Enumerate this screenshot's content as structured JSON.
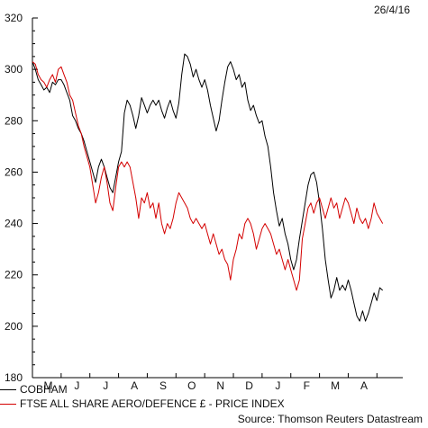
{
  "date_label": "26/4/16",
  "source": "Source: Thomson Reuters Datastream",
  "chart_data": {
    "type": "line",
    "ylim": [
      180,
      320
    ],
    "yticks": [
      180,
      200,
      220,
      240,
      260,
      280,
      300,
      320
    ],
    "month_labels": [
      "M",
      "J",
      "J",
      "A",
      "S",
      "O",
      "N",
      "D",
      "J",
      "F",
      "M",
      "A"
    ],
    "x_range": [
      0,
      12.9
    ],
    "series": [
      {
        "name": "COBHAM",
        "color": "#000000",
        "points": [
          [
            0.0,
            303
          ],
          [
            0.1,
            300
          ],
          [
            0.2,
            296
          ],
          [
            0.3,
            294
          ],
          [
            0.4,
            292
          ],
          [
            0.5,
            293
          ],
          [
            0.6,
            291
          ],
          [
            0.7,
            295
          ],
          [
            0.8,
            294
          ],
          [
            0.9,
            296
          ],
          [
            1.0,
            296
          ],
          [
            1.1,
            294
          ],
          [
            1.2,
            291
          ],
          [
            1.3,
            288
          ],
          [
            1.4,
            282
          ],
          [
            1.5,
            280
          ],
          [
            1.6,
            277
          ],
          [
            1.7,
            275
          ],
          [
            1.8,
            272
          ],
          [
            1.9,
            268
          ],
          [
            2.0,
            264
          ],
          [
            2.1,
            260
          ],
          [
            2.2,
            256
          ],
          [
            2.3,
            262
          ],
          [
            2.4,
            265
          ],
          [
            2.5,
            262
          ],
          [
            2.6,
            258
          ],
          [
            2.7,
            254
          ],
          [
            2.8,
            252
          ],
          [
            2.9,
            258
          ],
          [
            3.0,
            264
          ],
          [
            3.1,
            268
          ],
          [
            3.2,
            283
          ],
          [
            3.3,
            288
          ],
          [
            3.4,
            286
          ],
          [
            3.5,
            282
          ],
          [
            3.6,
            277
          ],
          [
            3.7,
            282
          ],
          [
            3.8,
            289
          ],
          [
            3.9,
            286
          ],
          [
            4.0,
            283
          ],
          [
            4.1,
            286
          ],
          [
            4.2,
            288
          ],
          [
            4.3,
            286
          ],
          [
            4.4,
            288
          ],
          [
            4.5,
            284
          ],
          [
            4.6,
            281
          ],
          [
            4.7,
            285
          ],
          [
            4.8,
            288
          ],
          [
            4.9,
            284
          ],
          [
            5.0,
            281
          ],
          [
            5.1,
            287
          ],
          [
            5.2,
            298
          ],
          [
            5.3,
            306
          ],
          [
            5.4,
            305
          ],
          [
            5.5,
            302
          ],
          [
            5.6,
            297
          ],
          [
            5.7,
            300
          ],
          [
            5.8,
            296
          ],
          [
            5.9,
            293
          ],
          [
            6.0,
            296
          ],
          [
            6.1,
            292
          ],
          [
            6.2,
            286
          ],
          [
            6.3,
            281
          ],
          [
            6.4,
            276
          ],
          [
            6.5,
            280
          ],
          [
            6.6,
            288
          ],
          [
            6.7,
            295
          ],
          [
            6.8,
            301
          ],
          [
            6.9,
            303
          ],
          [
            7.0,
            300
          ],
          [
            7.1,
            296
          ],
          [
            7.2,
            298
          ],
          [
            7.3,
            293
          ],
          [
            7.4,
            295
          ],
          [
            7.5,
            288
          ],
          [
            7.6,
            284
          ],
          [
            7.7,
            286
          ],
          [
            7.8,
            282
          ],
          [
            7.9,
            279
          ],
          [
            8.0,
            280
          ],
          [
            8.1,
            274
          ],
          [
            8.2,
            270
          ],
          [
            8.3,
            262
          ],
          [
            8.4,
            252
          ],
          [
            8.5,
            245
          ],
          [
            8.6,
            239
          ],
          [
            8.7,
            242
          ],
          [
            8.8,
            236
          ],
          [
            8.9,
            232
          ],
          [
            9.0,
            226
          ],
          [
            9.1,
            222
          ],
          [
            9.2,
            226
          ],
          [
            9.3,
            234
          ],
          [
            9.4,
            241
          ],
          [
            9.5,
            248
          ],
          [
            9.6,
            255
          ],
          [
            9.7,
            259
          ],
          [
            9.8,
            260
          ],
          [
            9.9,
            256
          ],
          [
            10.0,
            248
          ],
          [
            10.1,
            238
          ],
          [
            10.2,
            226
          ],
          [
            10.3,
            218
          ],
          [
            10.4,
            211
          ],
          [
            10.5,
            214
          ],
          [
            10.6,
            219
          ],
          [
            10.7,
            214
          ],
          [
            10.8,
            216
          ],
          [
            10.9,
            214
          ],
          [
            11.0,
            218
          ],
          [
            11.1,
            214
          ],
          [
            11.2,
            209
          ],
          [
            11.3,
            204
          ],
          [
            11.4,
            202
          ],
          [
            11.5,
            206
          ],
          [
            11.6,
            202
          ],
          [
            11.7,
            205
          ],
          [
            11.8,
            209
          ],
          [
            11.9,
            213
          ],
          [
            12.0,
            210
          ],
          [
            12.1,
            215
          ],
          [
            12.2,
            214
          ]
        ]
      },
      {
        "name": "FTSE ALL SHARE AERO/DEFENCE £ - PRICE INDEX",
        "color": "#d40000",
        "points": [
          [
            0.0,
            303
          ],
          [
            0.1,
            302
          ],
          [
            0.2,
            298
          ],
          [
            0.3,
            296
          ],
          [
            0.4,
            295
          ],
          [
            0.5,
            293
          ],
          [
            0.6,
            296
          ],
          [
            0.7,
            298
          ],
          [
            0.8,
            295
          ],
          [
            0.9,
            300
          ],
          [
            1.0,
            301
          ],
          [
            1.1,
            298
          ],
          [
            1.2,
            295
          ],
          [
            1.3,
            290
          ],
          [
            1.4,
            288
          ],
          [
            1.5,
            283
          ],
          [
            1.6,
            278
          ],
          [
            1.7,
            275
          ],
          [
            1.8,
            270
          ],
          [
            1.9,
            266
          ],
          [
            2.0,
            262
          ],
          [
            2.1,
            255
          ],
          [
            2.2,
            248
          ],
          [
            2.3,
            252
          ],
          [
            2.4,
            258
          ],
          [
            2.5,
            262
          ],
          [
            2.6,
            256
          ],
          [
            2.7,
            248
          ],
          [
            2.8,
            245
          ],
          [
            2.9,
            254
          ],
          [
            3.0,
            262
          ],
          [
            3.1,
            264
          ],
          [
            3.2,
            262
          ],
          [
            3.3,
            264
          ],
          [
            3.4,
            262
          ],
          [
            3.5,
            256
          ],
          [
            3.6,
            250
          ],
          [
            3.7,
            242
          ],
          [
            3.8,
            250
          ],
          [
            3.9,
            248
          ],
          [
            4.0,
            252
          ],
          [
            4.1,
            246
          ],
          [
            4.2,
            248
          ],
          [
            4.3,
            242
          ],
          [
            4.4,
            248
          ],
          [
            4.5,
            240
          ],
          [
            4.6,
            236
          ],
          [
            4.7,
            240
          ],
          [
            4.8,
            238
          ],
          [
            4.9,
            242
          ],
          [
            5.0,
            248
          ],
          [
            5.1,
            252
          ],
          [
            5.2,
            250
          ],
          [
            5.3,
            248
          ],
          [
            5.4,
            246
          ],
          [
            5.5,
            242
          ],
          [
            5.6,
            240
          ],
          [
            5.7,
            242
          ],
          [
            5.8,
            240
          ],
          [
            5.9,
            238
          ],
          [
            6.0,
            240
          ],
          [
            6.1,
            236
          ],
          [
            6.2,
            232
          ],
          [
            6.3,
            236
          ],
          [
            6.4,
            232
          ],
          [
            6.5,
            228
          ],
          [
            6.6,
            230
          ],
          [
            6.7,
            226
          ],
          [
            6.8,
            224
          ],
          [
            6.9,
            218
          ],
          [
            7.0,
            226
          ],
          [
            7.1,
            230
          ],
          [
            7.2,
            236
          ],
          [
            7.3,
            234
          ],
          [
            7.4,
            240
          ],
          [
            7.5,
            242
          ],
          [
            7.6,
            240
          ],
          [
            7.7,
            236
          ],
          [
            7.8,
            230
          ],
          [
            7.9,
            234
          ],
          [
            8.0,
            238
          ],
          [
            8.1,
            240
          ],
          [
            8.2,
            238
          ],
          [
            8.3,
            236
          ],
          [
            8.4,
            232
          ],
          [
            8.5,
            228
          ],
          [
            8.6,
            230
          ],
          [
            8.7,
            226
          ],
          [
            8.8,
            222
          ],
          [
            8.9,
            226
          ],
          [
            9.0,
            222
          ],
          [
            9.1,
            218
          ],
          [
            9.2,
            214
          ],
          [
            9.3,
            218
          ],
          [
            9.4,
            234
          ],
          [
            9.5,
            240
          ],
          [
            9.6,
            246
          ],
          [
            9.7,
            248
          ],
          [
            9.8,
            244
          ],
          [
            9.9,
            248
          ],
          [
            10.0,
            250
          ],
          [
            10.1,
            246
          ],
          [
            10.2,
            242
          ],
          [
            10.3,
            246
          ],
          [
            10.4,
            250
          ],
          [
            10.5,
            246
          ],
          [
            10.6,
            248
          ],
          [
            10.7,
            242
          ],
          [
            10.8,
            246
          ],
          [
            10.9,
            250
          ],
          [
            11.0,
            248
          ],
          [
            11.1,
            244
          ],
          [
            11.2,
            240
          ],
          [
            11.3,
            246
          ],
          [
            11.4,
            242
          ],
          [
            11.5,
            240
          ],
          [
            11.6,
            242
          ],
          [
            11.7,
            238
          ],
          [
            11.8,
            242
          ],
          [
            11.9,
            248
          ],
          [
            12.0,
            244
          ],
          [
            12.1,
            242
          ],
          [
            12.2,
            240
          ]
        ]
      }
    ]
  }
}
